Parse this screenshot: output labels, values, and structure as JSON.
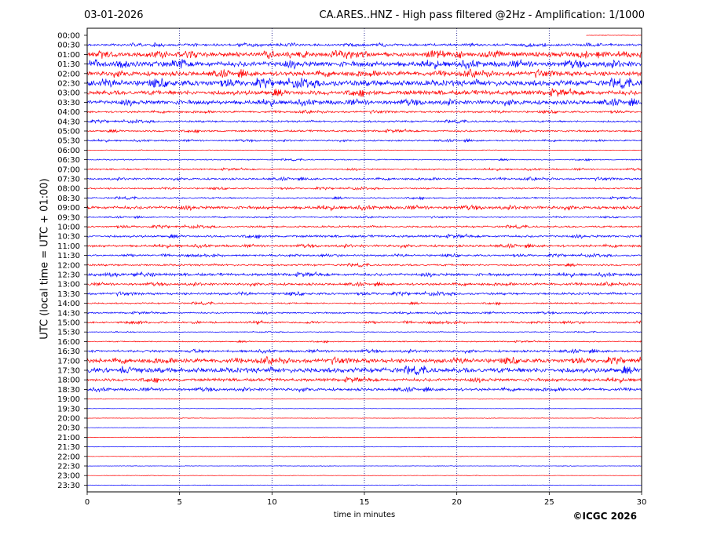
{
  "header": {
    "date": "03-01-2026",
    "title": "CA.ARES..HNZ - High pass filtered @2Hz - Amplification: 1/1000"
  },
  "footer": {
    "copyright": "©ICGC 2026"
  },
  "colors": {
    "trace_a": "#ff0000",
    "trace_b": "#0000ff",
    "axes": "#000000",
    "grid": "#000080"
  },
  "chart_data": {
    "type": "line",
    "title": "CA.ARES..HNZ - High pass filtered @2Hz - Amplification: 1/1000",
    "xlabel": "time in minutes",
    "ylabel": "UTC (local time = UTC + 01:00)",
    "xlim": [
      0,
      30
    ],
    "x_ticks": [
      "0",
      "5",
      "10",
      "15",
      "20",
      "25",
      "30"
    ],
    "x_tick_values": [
      0,
      5,
      10,
      15,
      20,
      25,
      30
    ],
    "grid": "vertical dotted lines at each x tick",
    "row_labels": [
      "00:00",
      "00:30",
      "01:00",
      "01:30",
      "02:00",
      "02:30",
      "03:00",
      "03:30",
      "04:00",
      "04:30",
      "05:00",
      "05:30",
      "06:00",
      "06:30",
      "07:00",
      "07:30",
      "08:00",
      "08:30",
      "09:00",
      "09:30",
      "10:00",
      "10:30",
      "11:00",
      "11:30",
      "12:00",
      "12:30",
      "13:00",
      "13:30",
      "14:00",
      "14:30",
      "15:00",
      "15:30",
      "16:00",
      "16:30",
      "17:00",
      "17:30",
      "18:00",
      "18:30",
      "19:00",
      "19:30",
      "20:00",
      "20:30",
      "21:00",
      "21:30",
      "22:00",
      "22:30",
      "23:00",
      "23:30"
    ],
    "row_colors": "alternating red / blue starting with red at 00:00",
    "relative_amplitude": [
      0.05,
      0.3,
      0.6,
      0.7,
      0.6,
      0.75,
      0.6,
      0.55,
      0.25,
      0.25,
      0.25,
      0.2,
      0.05,
      0.15,
      0.2,
      0.25,
      0.2,
      0.2,
      0.4,
      0.15,
      0.25,
      0.3,
      0.3,
      0.25,
      0.25,
      0.35,
      0.3,
      0.3,
      0.2,
      0.2,
      0.25,
      0.1,
      0.15,
      0.3,
      0.55,
      0.65,
      0.4,
      0.35,
      0.05,
      0.05,
      0.05,
      0.05,
      0.05,
      0.05,
      0.05,
      0.05,
      0.05,
      0.05
    ],
    "trace_start_minutes": [
      27,
      0,
      0,
      0,
      0,
      0,
      0,
      0,
      0,
      0,
      0,
      0,
      0,
      0,
      0,
      0,
      0,
      0,
      0,
      0,
      0,
      0,
      0,
      0,
      0,
      0,
      0,
      0,
      0,
      0,
      0,
      0,
      0,
      0,
      0,
      0,
      0,
      0,
      0,
      0,
      0,
      0,
      0,
      0,
      0,
      0,
      0,
      0
    ]
  }
}
